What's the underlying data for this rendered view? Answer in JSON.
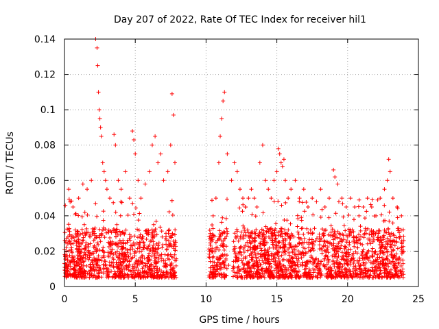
{
  "chart_data": {
    "type": "scatter",
    "title": "Day 207 of 2022, Rate Of TEC Index for receiver hil1",
    "xlabel": "GPS time / hours",
    "ylabel": "ROTI / TECUs",
    "xlim": [
      0,
      25
    ],
    "ylim": [
      0,
      0.14
    ],
    "xticks": [
      0,
      5,
      10,
      15,
      20,
      25
    ],
    "yticks": [
      0,
      0.02,
      0.04,
      0.06,
      0.08,
      0.1,
      0.12,
      0.14
    ],
    "xtick_labels": [
      "0",
      "5",
      "10",
      "15",
      "20",
      "25"
    ],
    "ytick_labels": [
      "0",
      "0.02",
      "0.04",
      "0.06",
      "0.08",
      "0.1",
      "0.12",
      "0.14"
    ],
    "grid": true,
    "marker": "+",
    "color": "#ff0000",
    "series": [
      {
        "x": [
          0.3,
          0.6,
          1.0,
          1.3,
          1.6,
          1.9,
          2.2,
          2.3,
          2.35,
          2.4,
          2.45,
          2.5,
          2.55,
          2.6,
          2.7,
          2.8,
          2.9,
          3.0,
          3.2,
          3.5,
          3.6,
          3.8,
          4.0,
          4.3,
          4.6,
          4.8,
          4.9,
          5.0,
          5.2,
          5.4,
          5.7,
          6.0,
          6.2,
          6.4,
          6.6,
          6.8,
          7.0,
          7.3,
          7.5,
          7.6,
          7.7,
          7.8,
          10.3,
          10.5,
          10.7,
          10.9,
          11.0,
          11.1,
          11.2,
          11.3,
          11.5,
          11.8,
          12.0,
          12.2,
          12.4,
          12.6,
          12.8,
          13.0,
          13.2,
          13.4,
          13.6,
          13.8,
          14.0,
          14.2,
          14.4,
          14.6,
          14.8,
          15.0,
          15.1,
          15.2,
          15.3,
          15.4,
          15.5,
          15.6,
          15.8,
          16.0,
          16.3,
          16.6,
          16.9,
          17.2,
          17.5,
          17.8,
          18.1,
          18.4,
          18.7,
          19.0,
          19.1,
          19.3,
          19.6,
          19.9,
          20.2,
          20.5,
          20.8,
          21.1,
          21.4,
          21.7,
          22.0,
          22.3,
          22.6,
          22.8,
          22.9,
          23.0,
          23.2,
          23.5,
          23.8,
          0.1,
          0.5,
          0.9,
          1.4,
          1.8,
          2.6,
          3.1,
          3.7,
          4.2,
          4.7,
          5.3,
          5.8,
          6.3,
          6.9,
          7.4,
          10.4,
          10.8,
          11.4,
          12.1,
          12.9,
          13.5,
          14.1,
          14.7,
          15.7,
          16.2,
          16.8,
          17.4,
          18.0,
          18.6,
          19.4,
          20.0,
          20.6,
          21.2,
          21.8,
          22.4,
          23.1,
          23.7,
          0.2,
          0.8,
          1.5,
          2.1,
          3.3,
          4.1,
          5.1,
          6.1,
          7.1,
          7.9,
          10.6,
          11.6,
          12.3,
          13.3,
          14.3,
          15.9,
          16.5,
          17.6,
          18.3,
          19.8,
          20.9,
          21.5,
          22.1,
          23.3,
          23.9
        ],
        "y": [
          0.055,
          0.045,
          0.05,
          0.058,
          0.055,
          0.06,
          0.14,
          0.135,
          0.125,
          0.11,
          0.1,
          0.095,
          0.09,
          0.085,
          0.07,
          0.065,
          0.06,
          0.055,
          0.05,
          0.086,
          0.08,
          0.06,
          0.055,
          0.065,
          0.05,
          0.088,
          0.083,
          0.075,
          0.06,
          0.05,
          0.058,
          0.065,
          0.08,
          0.085,
          0.07,
          0.075,
          0.06,
          0.065,
          0.08,
          0.109,
          0.097,
          0.07,
          0.03,
          0.04,
          0.05,
          0.07,
          0.085,
          0.095,
          0.105,
          0.11,
          0.075,
          0.06,
          0.07,
          0.065,
          0.055,
          0.05,
          0.045,
          0.05,
          0.055,
          0.05,
          0.045,
          0.07,
          0.08,
          0.06,
          0.055,
          0.05,
          0.06,
          0.065,
          0.078,
          0.075,
          0.07,
          0.068,
          0.072,
          0.06,
          0.05,
          0.055,
          0.06,
          0.05,
          0.055,
          0.045,
          0.05,
          0.048,
          0.055,
          0.045,
          0.05,
          0.066,
          0.062,
          0.058,
          0.05,
          0.045,
          0.05,
          0.045,
          0.04,
          0.045,
          0.05,
          0.045,
          0.04,
          0.05,
          0.055,
          0.06,
          0.072,
          0.065,
          0.05,
          0.045,
          0.04,
          0.025,
          0.02,
          0.03,
          0.035,
          0.028,
          0.03,
          0.025,
          0.035,
          0.03,
          0.028,
          0.025,
          0.03,
          0.035,
          0.028,
          0.032,
          0.02,
          0.022,
          0.015,
          0.028,
          0.025,
          0.03,
          0.028,
          0.025,
          0.03,
          0.028,
          0.025,
          0.03,
          0.028,
          0.025,
          0.03,
          0.028,
          0.025,
          0.03,
          0.028,
          0.025,
          0.03,
          0.028,
          0.015,
          0.012,
          0.018,
          0.015,
          0.02,
          0.018,
          0.015,
          0.012,
          0.018,
          0.015,
          0.01,
          0.012,
          0.015,
          0.012,
          0.015,
          0.012,
          0.018,
          0.015,
          0.012,
          0.015,
          0.012,
          0.015,
          0.018,
          0.012,
          0.015
        ]
      }
    ]
  }
}
